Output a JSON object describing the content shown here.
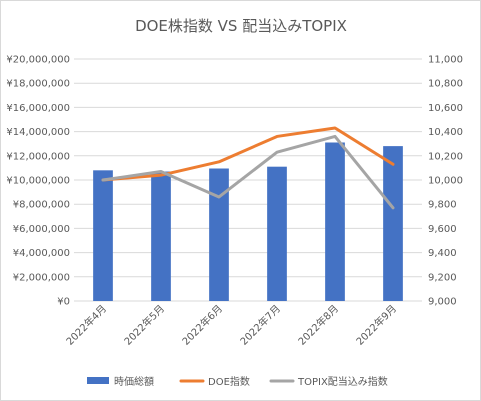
{
  "chart_data": {
    "type": "bar+line",
    "title": "DOE株指数 VS 配当込みTOPIX",
    "categories": [
      "2022年4月",
      "2022年5月",
      "2022年6月",
      "2022年7月",
      "2022年8月",
      "2022年9月"
    ],
    "bar_series": {
      "name": "時価総額",
      "axis": "left",
      "color": "#4472c4",
      "values": [
        10800000,
        10700000,
        10950000,
        11100000,
        13100000,
        12800000
      ]
    },
    "line_series": [
      {
        "name": "DOE指数",
        "axis": "right",
        "color": "#ed7d31",
        "values": [
          10000,
          10040,
          10150,
          10360,
          10430,
          10130
        ]
      },
      {
        "name": "TOPIX配当込み指数",
        "axis": "right",
        "color": "#a5a5a5",
        "values": [
          10000,
          10070,
          9860,
          10230,
          10360,
          9770
        ]
      }
    ],
    "left_axis": {
      "min": 0,
      "max": 20000000,
      "step": 2000000,
      "tick_labels": [
        "¥0",
        "¥2,000,000",
        "¥4,000,000",
        "¥6,000,000",
        "¥8,000,000",
        "¥10,000,000",
        "¥12,000,000",
        "¥14,000,000",
        "¥16,000,000",
        "¥18,000,000",
        "¥20,000,000"
      ]
    },
    "right_axis": {
      "min": 9000,
      "max": 11000,
      "step": 200,
      "tick_labels": [
        "9,000",
        "9,200",
        "9,400",
        "9,600",
        "9,800",
        "10,000",
        "10,200",
        "10,400",
        "10,600",
        "10,800",
        "11,000"
      ]
    },
    "grid": true,
    "legend_position": "bottom"
  }
}
